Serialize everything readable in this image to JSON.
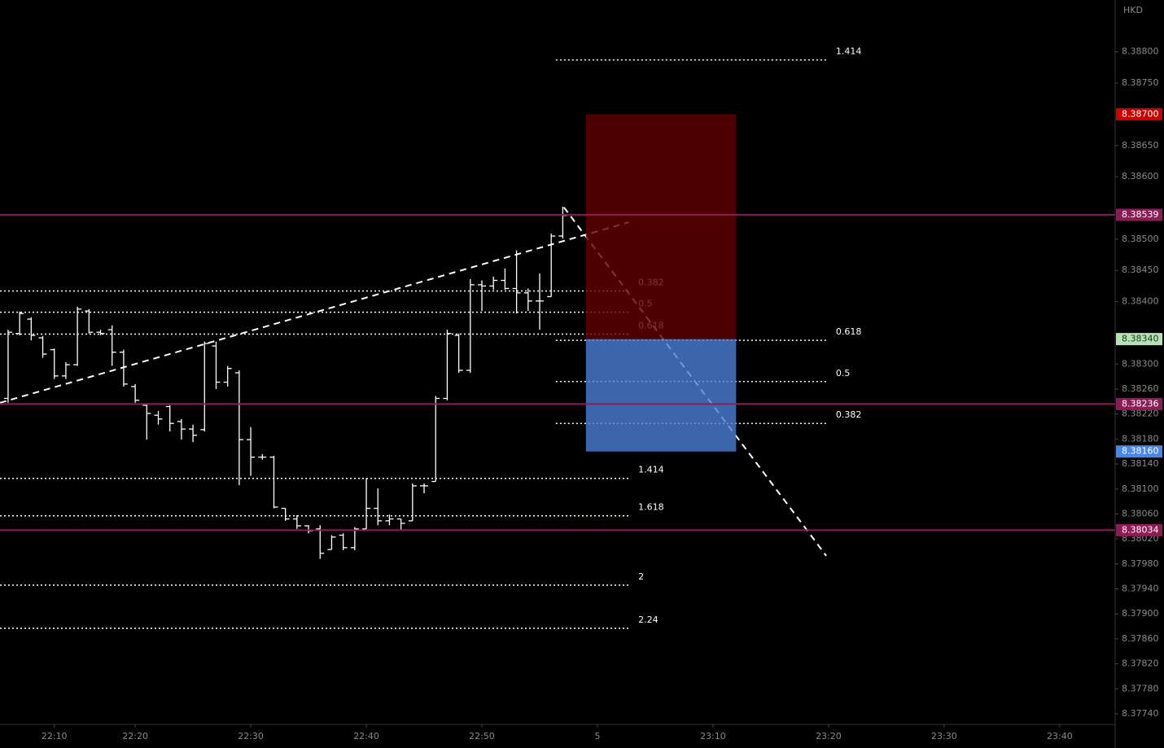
{
  "chart_data": {
    "type": "ohlc",
    "currency": "HKD",
    "bar_color": "#ffffff",
    "xlim": [
      -0.7,
      95.8
    ],
    "ylim": [
      8.37723,
      8.38883
    ],
    "xticks": [
      {
        "value": 4,
        "label": "22:10"
      },
      {
        "value": 11,
        "label": "22:20"
      },
      {
        "value": 21,
        "label": "22:30"
      },
      {
        "value": 31,
        "label": "22:40"
      },
      {
        "value": 41,
        "label": "22:50"
      },
      {
        "value": 51,
        "label": "5"
      },
      {
        "value": 61,
        "label": "23:10"
      },
      {
        "value": 71,
        "label": "23:20"
      },
      {
        "value": 81,
        "label": "23:30"
      },
      {
        "value": 91,
        "label": "23:40"
      }
    ],
    "yticks": [
      {
        "value": 8.388,
        "label": "8.38800"
      },
      {
        "value": 8.3875,
        "label": "8.38750"
      },
      {
        "value": 8.3865,
        "label": "8.38650"
      },
      {
        "value": 8.386,
        "label": "8.38600"
      },
      {
        "value": 8.385,
        "label": "8.38500"
      },
      {
        "value": 8.3845,
        "label": "8.38450"
      },
      {
        "value": 8.384,
        "label": "8.38400"
      },
      {
        "value": 8.383,
        "label": "8.38300"
      },
      {
        "value": 8.3826,
        "label": "8.38260"
      },
      {
        "value": 8.3822,
        "label": "8.38220"
      },
      {
        "value": 8.3818,
        "label": "8.38180"
      },
      {
        "value": 8.3814,
        "label": "8.38140"
      },
      {
        "value": 8.381,
        "label": "8.38100"
      },
      {
        "value": 8.3806,
        "label": "8.38060"
      },
      {
        "value": 8.3802,
        "label": "8.38020"
      },
      {
        "value": 8.3798,
        "label": "8.37980"
      },
      {
        "value": 8.3794,
        "label": "8.37940"
      },
      {
        "value": 8.379,
        "label": "8.37900"
      },
      {
        "value": 8.3786,
        "label": "8.37860"
      },
      {
        "value": 8.3782,
        "label": "8.37820"
      },
      {
        "value": 8.3778,
        "label": "8.37780"
      },
      {
        "value": 8.3774,
        "label": "8.37740"
      }
    ],
    "x": [
      0,
      1,
      2,
      3,
      4,
      5,
      6,
      7,
      8,
      9,
      10,
      11,
      12,
      13,
      14,
      15,
      16,
      17,
      18,
      19,
      20,
      21,
      22,
      23,
      24,
      25,
      26,
      27,
      28,
      29,
      30,
      31,
      32,
      33,
      34,
      35,
      36,
      37,
      38,
      39,
      40,
      41,
      42,
      43,
      44,
      45,
      46,
      47,
      48
    ],
    "open": [
      8.38245,
      8.38349,
      8.38372,
      8.38342,
      8.38323,
      8.38281,
      8.38299,
      8.38385,
      8.38351,
      8.38355,
      8.38319,
      8.38264,
      8.38234,
      8.38218,
      8.38232,
      8.38208,
      8.38196,
      8.38195,
      8.38329,
      8.38271,
      8.38286,
      8.38179,
      8.38151,
      8.38151,
      8.38069,
      8.38052,
      8.38041,
      8.38036,
      8.38003,
      8.38026,
      8.38006,
      8.38036,
      8.38069,
      8.38049,
      8.38052,
      8.38049,
      8.38105,
      8.38112,
      8.38245,
      8.38346,
      8.3829,
      8.38427,
      8.38425,
      8.38434,
      8.38421,
      8.38414,
      8.38401,
      8.38408,
      8.38505
    ],
    "high": [
      8.38355,
      8.38384,
      8.38375,
      8.38345,
      8.38325,
      8.38303,
      8.38392,
      8.38388,
      8.38355,
      8.38362,
      8.38323,
      8.38268,
      8.38235,
      8.38225,
      8.38234,
      8.38212,
      8.38203,
      8.38336,
      8.38336,
      8.38297,
      8.3829,
      8.38199,
      8.38156,
      8.38153,
      8.38069,
      8.38058,
      8.38042,
      8.38042,
      8.38026,
      8.38029,
      8.38039,
      8.38117,
      8.38101,
      8.38059,
      8.38052,
      8.38109,
      8.38109,
      8.38249,
      8.38355,
      8.38349,
      8.38436,
      8.38434,
      8.3844,
      8.38453,
      8.38482,
      8.38421,
      8.38445,
      8.38509,
      8.38552
    ],
    "low": [
      8.38238,
      8.38346,
      8.38338,
      8.3831,
      8.38276,
      8.38276,
      8.38297,
      8.38349,
      8.38346,
      8.38297,
      8.38264,
      8.38238,
      8.38179,
      8.38203,
      8.38192,
      8.38179,
      8.38175,
      8.38192,
      8.3826,
      8.38264,
      8.38106,
      8.38121,
      8.38147,
      8.38069,
      8.38049,
      8.38036,
      8.38029,
      8.37988,
      8.38003,
      8.38002,
      8.38002,
      8.38036,
      8.38042,
      8.38042,
      8.38033,
      8.38049,
      8.38093,
      8.38112,
      8.38242,
      8.38286,
      8.38286,
      8.38385,
      8.38419,
      8.38419,
      8.38381,
      8.38385,
      8.38355,
      8.38408,
      8.38501
    ],
    "close": [
      8.38351,
      8.38381,
      8.38346,
      8.38316,
      8.38281,
      8.38299,
      8.38388,
      8.38351,
      8.38349,
      8.38319,
      8.38268,
      8.38242,
      8.38221,
      8.38212,
      8.38205,
      8.38196,
      8.38186,
      8.38333,
      8.38271,
      8.38293,
      8.38179,
      8.38151,
      8.38151,
      8.38071,
      8.38052,
      8.38041,
      8.38033,
      8.37997,
      8.38023,
      8.38006,
      8.38036,
      8.38069,
      8.38049,
      8.38052,
      8.38045,
      8.38105,
      8.38105,
      8.38245,
      8.38349,
      8.3829,
      8.38427,
      8.38425,
      8.38434,
      8.38421,
      8.38414,
      8.38401,
      8.38401,
      8.38505,
      8.38538
    ],
    "horizontal_lines": [
      {
        "value": 8.38539,
        "label": "8.38539",
        "color": "#8c1c56"
      },
      {
        "value": 8.38236,
        "label": "8.38236",
        "color": "#8c1c56"
      },
      {
        "value": 8.38034,
        "label": "8.38034",
        "color": "#8c1c56"
      }
    ],
    "boxes": [
      {
        "x": [
          50,
          63
        ],
        "top": 8.387,
        "bottom": 8.3834,
        "color": "#600000",
        "top_label": {
          "value": 8.387,
          "label": "8.38700",
          "color": "#cc0000"
        }
      },
      {
        "x": [
          50,
          63
        ],
        "top": 8.3834,
        "bottom": 8.3816,
        "color": "#4a7fd6",
        "top_label": {
          "value": 8.3834,
          "label": "8.38340",
          "color": "#b5e3b5"
        },
        "bottom_label": {
          "value": 8.3816,
          "label": "8.38160",
          "color": "#4a86e8"
        }
      }
    ],
    "fib_sets": [
      {
        "x": [
          -0.7,
          53.9
        ],
        "levels": [
          {
            "ratio": 0.382,
            "price": 8.38417
          },
          {
            "ratio": 0.5,
            "price": 8.38383
          },
          {
            "ratio": 0.618,
            "price": 8.38348
          },
          {
            "ratio": 1.414,
            "price": 8.38117
          },
          {
            "ratio": 1.618,
            "price": 8.38057
          },
          {
            "ratio": 2,
            "price": 8.37946
          },
          {
            "ratio": 2.24,
            "price": 8.37877
          }
        ]
      },
      {
        "x": [
          47.4,
          71
        ],
        "levels": [
          {
            "ratio": 1.414,
            "price": 8.38787
          },
          {
            "ratio": 0.618,
            "price": 8.38338
          },
          {
            "ratio": 0.5,
            "price": 8.38272
          },
          {
            "ratio": 0.382,
            "price": 8.38205
          }
        ]
      }
    ],
    "trendlines": [
      {
        "x": [
          -0.7,
          53.7
        ],
        "values": [
          8.38238,
          8.38527
        ]
      },
      {
        "x": [
          48.1,
          70.8
        ],
        "values": [
          8.38551,
          8.37993
        ]
      }
    ]
  }
}
